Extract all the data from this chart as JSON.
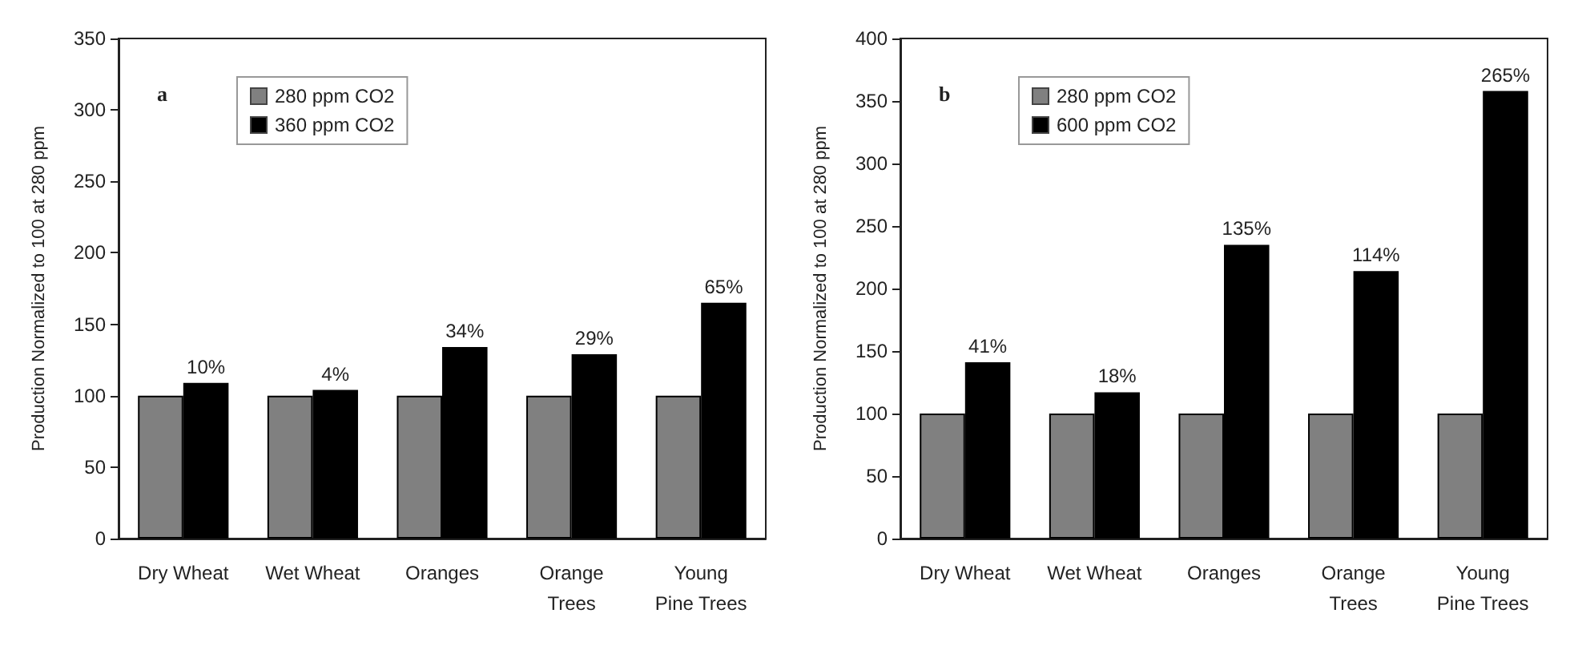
{
  "chart_data": [
    {
      "type": "bar",
      "ylabel": "Production Normalized to 100 at 280 ppm",
      "categories": [
        "Dry Wheat",
        "Wet Wheat",
        "Oranges",
        "Orange\nTrees",
        "Young\nPine Trees"
      ],
      "series": [
        {
          "name": "280 ppm CO2",
          "color": "#808080",
          "values": [
            100,
            100,
            100,
            100,
            100
          ]
        },
        {
          "name": "360 ppm CO2",
          "color": "#000000",
          "values": [
            109,
            104,
            134,
            129,
            165
          ]
        }
      ],
      "ylim": [
        0,
        350
      ],
      "yticks": [
        0,
        50,
        100,
        150,
        200,
        250,
        300,
        350
      ],
      "grid": false,
      "legend": "top left",
      "annotations": [
        "a",
        {
          "text": "10%",
          "x": "Dry Wheat",
          "y": 109
        },
        {
          "text": "4%",
          "x": "Wet Wheat",
          "y": 104
        },
        {
          "text": "34%",
          "x": "Oranges",
          "y": 134
        },
        {
          "text": "29%",
          "x": "Orange\nTrees",
          "y": 129
        },
        {
          "text": "65%",
          "x": "Young\nPine Trees",
          "y": 165
        }
      ]
    },
    {
      "type": "bar",
      "ylabel": "Production Normalized to 100 at 280 ppm",
      "categories": [
        "Dry Wheat",
        "Wet Wheat",
        "Oranges",
        "Orange\nTrees",
        "Young\nPine Trees"
      ],
      "series": [
        {
          "name": "280 ppm CO2",
          "color": "#808080",
          "values": [
            100,
            100,
            100,
            100,
            100
          ]
        },
        {
          "name": "600 ppm CO2",
          "color": "#000000",
          "values": [
            141,
            117,
            235,
            214,
            358
          ]
        }
      ],
      "ylim": [
        0,
        400
      ],
      "yticks": [
        0,
        50,
        100,
        150,
        200,
        250,
        300,
        350,
        400
      ],
      "grid": false,
      "legend": "top left",
      "annotations": [
        "b",
        {
          "text": "41%",
          "x": "Dry Wheat",
          "y": 141
        },
        {
          "text": "18%",
          "x": "Wet Wheat",
          "y": 117
        },
        {
          "text": "135%",
          "x": "Oranges",
          "y": 235
        },
        {
          "text": "114%",
          "x": "Orange\nTrees",
          "y": 214
        },
        {
          "text": "265%",
          "x": "Young\nPine Trees",
          "y": 358
        }
      ]
    }
  ]
}
